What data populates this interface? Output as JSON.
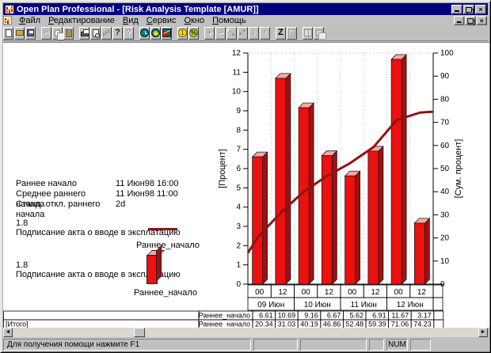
{
  "window": {
    "title": "Open Plan Professional - [Risk Analysis Template [AMUR]]"
  },
  "menu": {
    "items": [
      {
        "id": "file",
        "label": "Файл"
      },
      {
        "id": "edit",
        "label": "Редактирование"
      },
      {
        "id": "view",
        "label": "Вид"
      },
      {
        "id": "tools",
        "label": "Сервис"
      },
      {
        "id": "window",
        "label": "Окно"
      },
      {
        "id": "help",
        "label": "Помощь"
      }
    ]
  },
  "toolbar": {
    "buttons": [
      {
        "name": "new-button",
        "icon": "new-document-icon",
        "kind": "new",
        "disabled": false,
        "group": 0
      },
      {
        "name": "open-button",
        "icon": "open-folder-icon",
        "kind": "open",
        "disabled": false,
        "group": 0
      },
      {
        "name": "save-button",
        "icon": "save-disk-icon",
        "kind": "save",
        "disabled": false,
        "group": 0
      },
      {
        "name": "cut-button",
        "icon": "cut-scissors-icon",
        "kind": "cut",
        "disabled": true,
        "group": 1
      },
      {
        "name": "copy-button",
        "icon": "copy-icon",
        "kind": "copy",
        "disabled": true,
        "group": 1
      },
      {
        "name": "paste-button",
        "icon": "paste-clipboard-icon",
        "kind": "paste",
        "disabled": true,
        "group": 1
      },
      {
        "name": "print-button",
        "icon": "printer-icon",
        "kind": "print",
        "disabled": false,
        "group": 2
      },
      {
        "name": "print-preview-button",
        "icon": "print-preview-icon",
        "kind": "preview",
        "disabled": false,
        "group": 2
      },
      {
        "name": "levels-button",
        "icon": "levels-icon",
        "kind": "levels",
        "disabled": true,
        "group": 2
      },
      {
        "name": "help-button",
        "icon": "help-icon",
        "kind": "help",
        "disabled": false,
        "group": 2
      },
      {
        "name": "context-help-button",
        "icon": "context-help-icon",
        "kind": "chelp",
        "disabled": true,
        "group": 2
      },
      {
        "name": "time-analysis-button",
        "icon": "clock-icon",
        "kind": "clock",
        "disabled": false,
        "group": 3
      },
      {
        "name": "resource-button",
        "icon": "bird-icon",
        "kind": "bird",
        "disabled": false,
        "group": 3
      },
      {
        "name": "risk-histogram-button",
        "icon": "histogram-icon",
        "kind": "hist",
        "disabled": false,
        "group": 3
      },
      {
        "name": "cost-button",
        "icon": "coin-icon",
        "kind": "coin",
        "disabled": false,
        "group": 4
      },
      {
        "name": "percent-complete-button",
        "icon": "percent-icon",
        "kind": "percent",
        "disabled": false,
        "group": 4
      },
      {
        "name": "add-button",
        "icon": "plus-icon",
        "kind": "plus",
        "disabled": true,
        "group": 5
      },
      {
        "name": "remove-button",
        "icon": "minus-icon",
        "kind": "minus",
        "disabled": true,
        "group": 5
      },
      {
        "name": "link-button",
        "icon": "link-icon",
        "kind": "link",
        "disabled": true,
        "group": 5
      },
      {
        "name": "unlink-button",
        "icon": "unlink-icon",
        "kind": "unlink",
        "disabled": true,
        "group": 5
      },
      {
        "name": "move-down-button",
        "icon": "arrow-down-icon",
        "kind": "down",
        "disabled": true,
        "group": 5
      },
      {
        "name": "move-up-button",
        "icon": "arrow-up-icon",
        "kind": "up",
        "disabled": true,
        "group": 5
      },
      {
        "name": "sort-button",
        "icon": "sort-z-icon",
        "kind": "zsort",
        "disabled": false,
        "group": 6
      },
      {
        "name": "notes-button",
        "icon": "notes-icon",
        "kind": "notes",
        "disabled": true,
        "group": 6
      },
      {
        "name": "split-window-button",
        "icon": "split-window-icon",
        "kind": "split",
        "disabled": true,
        "group": 7
      },
      {
        "name": "cascade-window-button",
        "icon": "cascade-window-icon",
        "kind": "cascade",
        "disabled": true,
        "group": 7
      }
    ]
  },
  "stats": {
    "rows": [
      {
        "label": "Раннее начало",
        "value": "11 Июн98 16:00"
      },
      {
        "label": "Среднее раннего начала",
        "value": "11 Июн98 11:00"
      },
      {
        "label": "Станд. откл.  раннего начала",
        "value": "2d"
      }
    ]
  },
  "legends": [
    {
      "value": "1.8",
      "task": "Подписание акта о вводе в эксплатацию",
      "series": "Раннее_начало",
      "marker": "line"
    },
    {
      "value": "1.8",
      "task": "Подписание акта о вводе в эксплатацию",
      "series": "Раннее_начало",
      "marker": "bar"
    }
  ],
  "chart_data": {
    "type": "bar+line",
    "categories": [
      "00",
      "12",
      "00",
      "12",
      "00",
      "12",
      "00",
      "12"
    ],
    "date_groups": [
      "09 Июн",
      "10 Июн",
      "11 Июн",
      "12 Июн"
    ],
    "series": [
      {
        "name": "Раннее_начало",
        "type": "bar",
        "axis": "left",
        "values": [
          6.61,
          10.69,
          9.16,
          6.67,
          5.62,
          6.91,
          11.67,
          3.17
        ]
      },
      {
        "name": "Раннее_начало",
        "type": "line",
        "axis": "right",
        "values": [
          20.34,
          31.03,
          40.19,
          46.86,
          52.48,
          59.39,
          71.06,
          74.23
        ],
        "edge_start": 13.5,
        "edge_end": 74.6
      }
    ],
    "ylabel_left": "[Процент]",
    "ylabel_right": "[Сум. процент]",
    "ylim_left": [
      0,
      12
    ],
    "ytick_step_left": 1,
    "ylim_right": [
      0,
      100
    ],
    "ytick_step_right": 10,
    "grid": "dotted-vertical",
    "colors": {
      "bar_front": "#ee0f0f",
      "bar_top": "#f9a8a8",
      "bar_side": "#a01010",
      "bar_outline": "#1a1a1a",
      "line": "#8f1414"
    }
  },
  "table": {
    "series_label": "Раннее_начало",
    "total_label": "[Итого]"
  },
  "scrollbar": {
    "left_glyph": "◄",
    "right_glyph": "►"
  },
  "statusbar": {
    "help": "Для получения помощи нажмите F1",
    "num": "NUM"
  }
}
